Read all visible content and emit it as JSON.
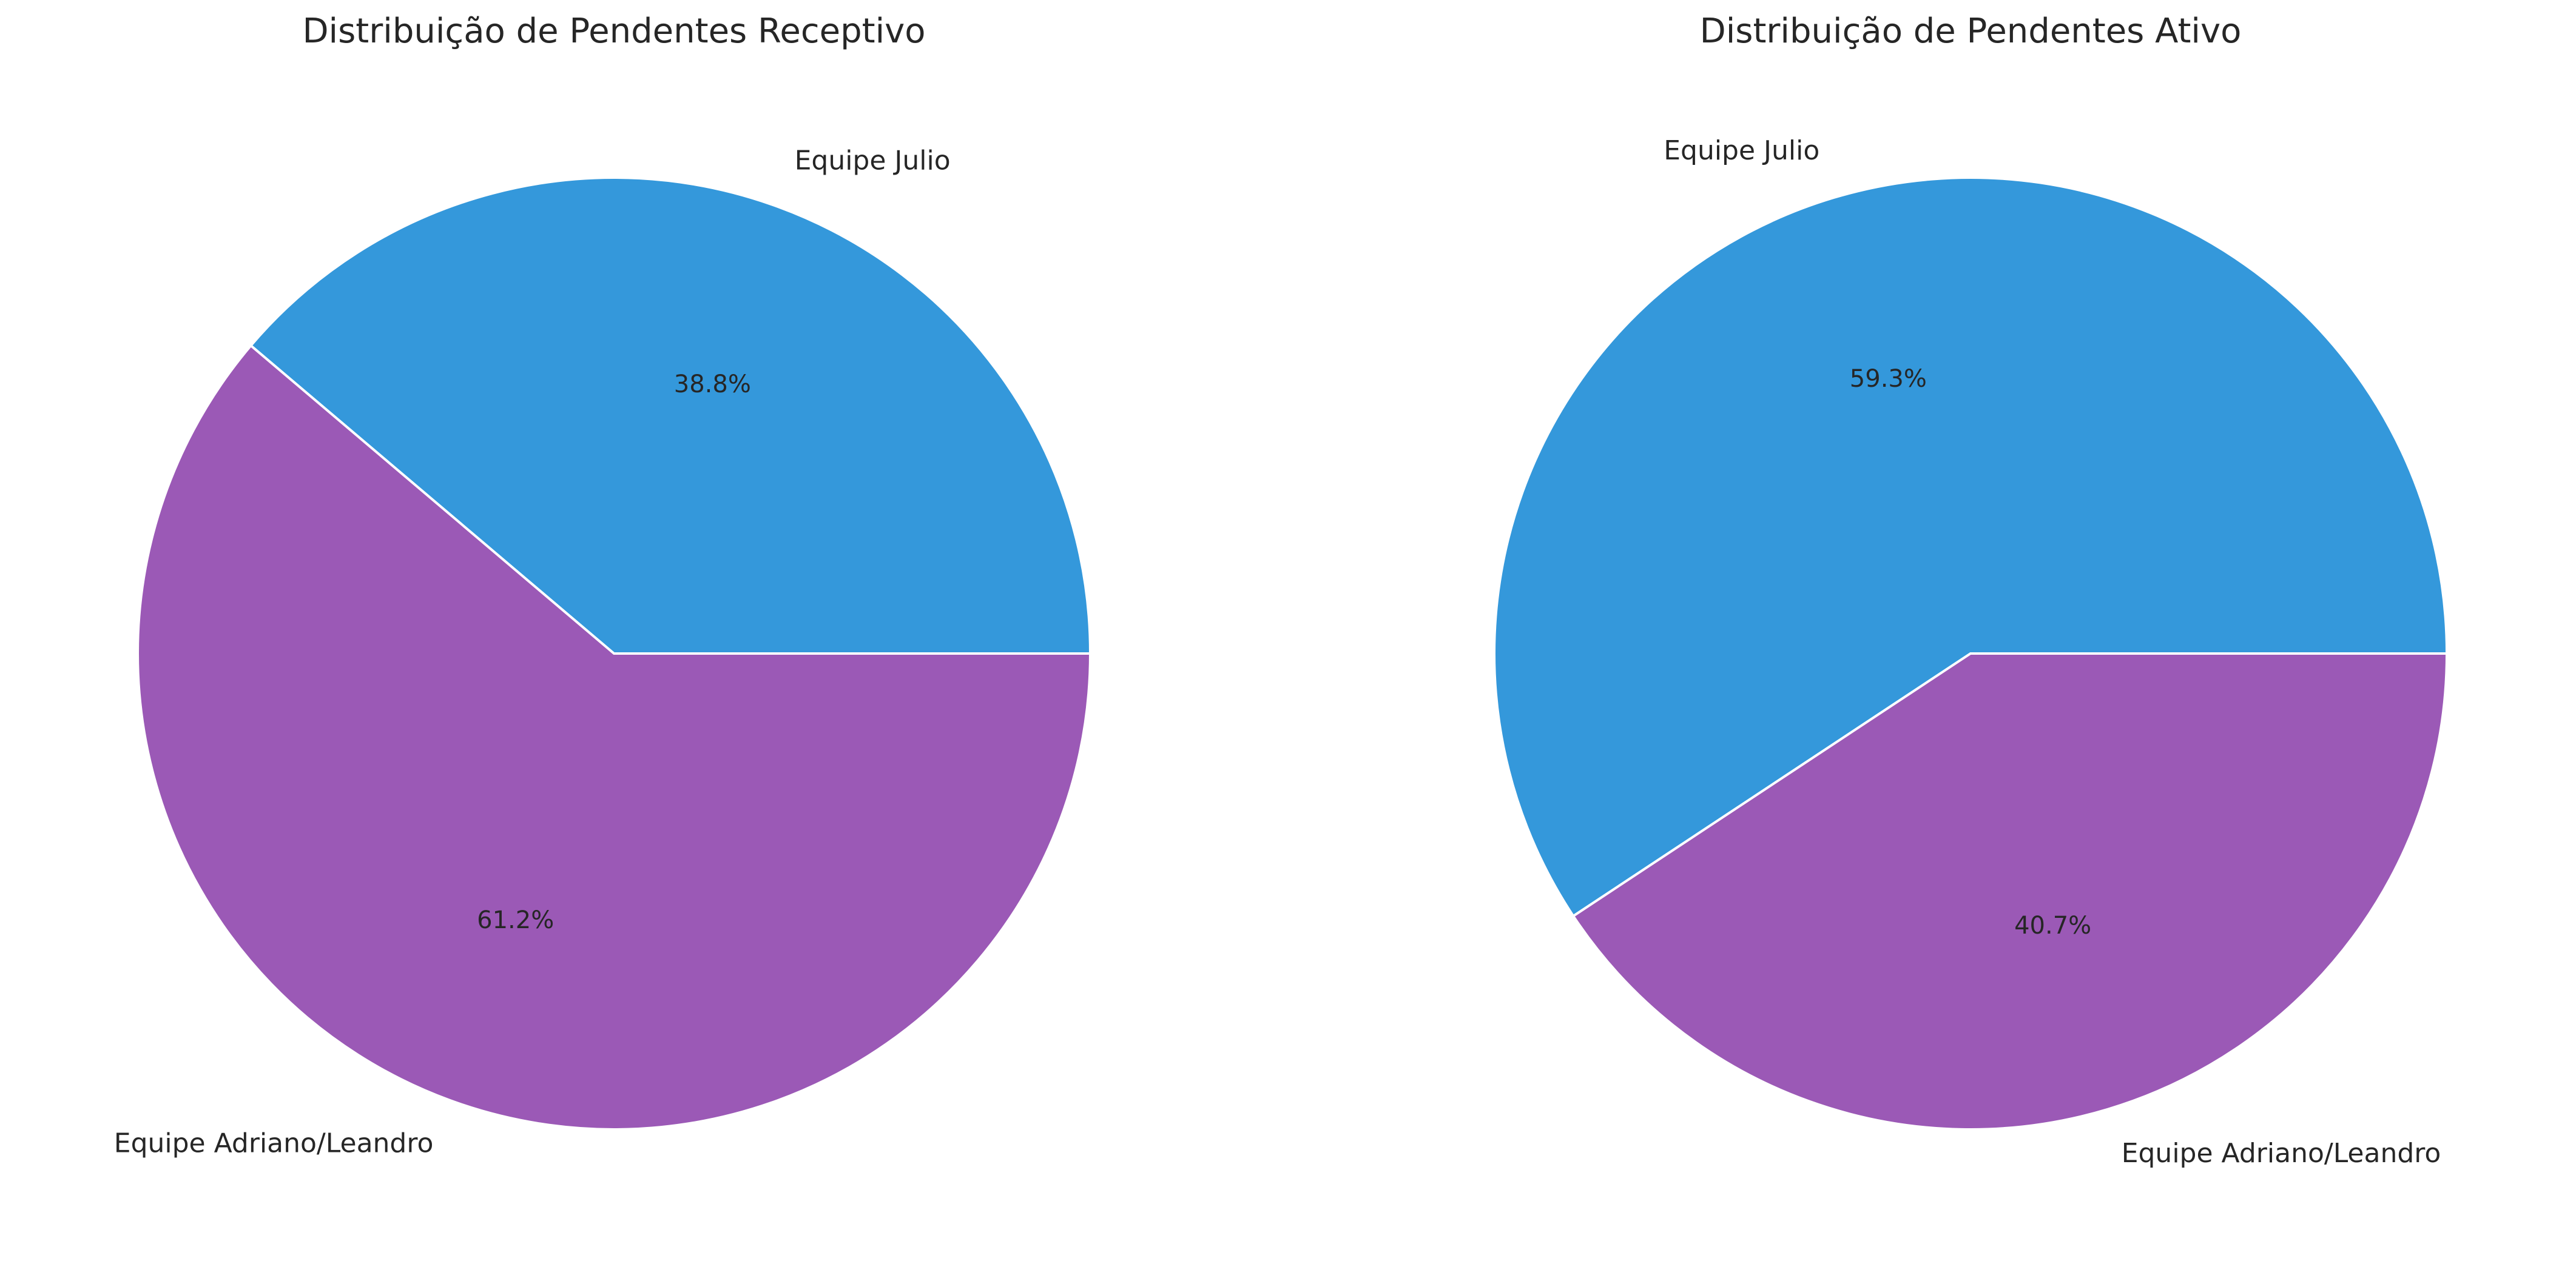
{
  "chart_data": [
    {
      "type": "pie",
      "title": "Distribuição de Pendentes Receptivo",
      "categories": [
        "Equipe Julio",
        "Equipe Adriano/Leandro"
      ],
      "values": [
        38.8,
        61.2
      ],
      "value_labels": [
        "38.8%",
        "61.2%"
      ],
      "colors": [
        "#3498db",
        "#9b59b6"
      ],
      "start_angle_deg": 0,
      "direction": "counterclockwise"
    },
    {
      "type": "pie",
      "title": "Distribuição de Pendentes Ativo",
      "categories": [
        "Equipe Julio",
        "Equipe Adriano/Leandro"
      ],
      "values": [
        59.3,
        40.7
      ],
      "value_labels": [
        "59.3%",
        "40.7%"
      ],
      "colors": [
        "#3498db",
        "#9b59b6"
      ],
      "start_angle_deg": 0,
      "direction": "counterclockwise"
    }
  ]
}
